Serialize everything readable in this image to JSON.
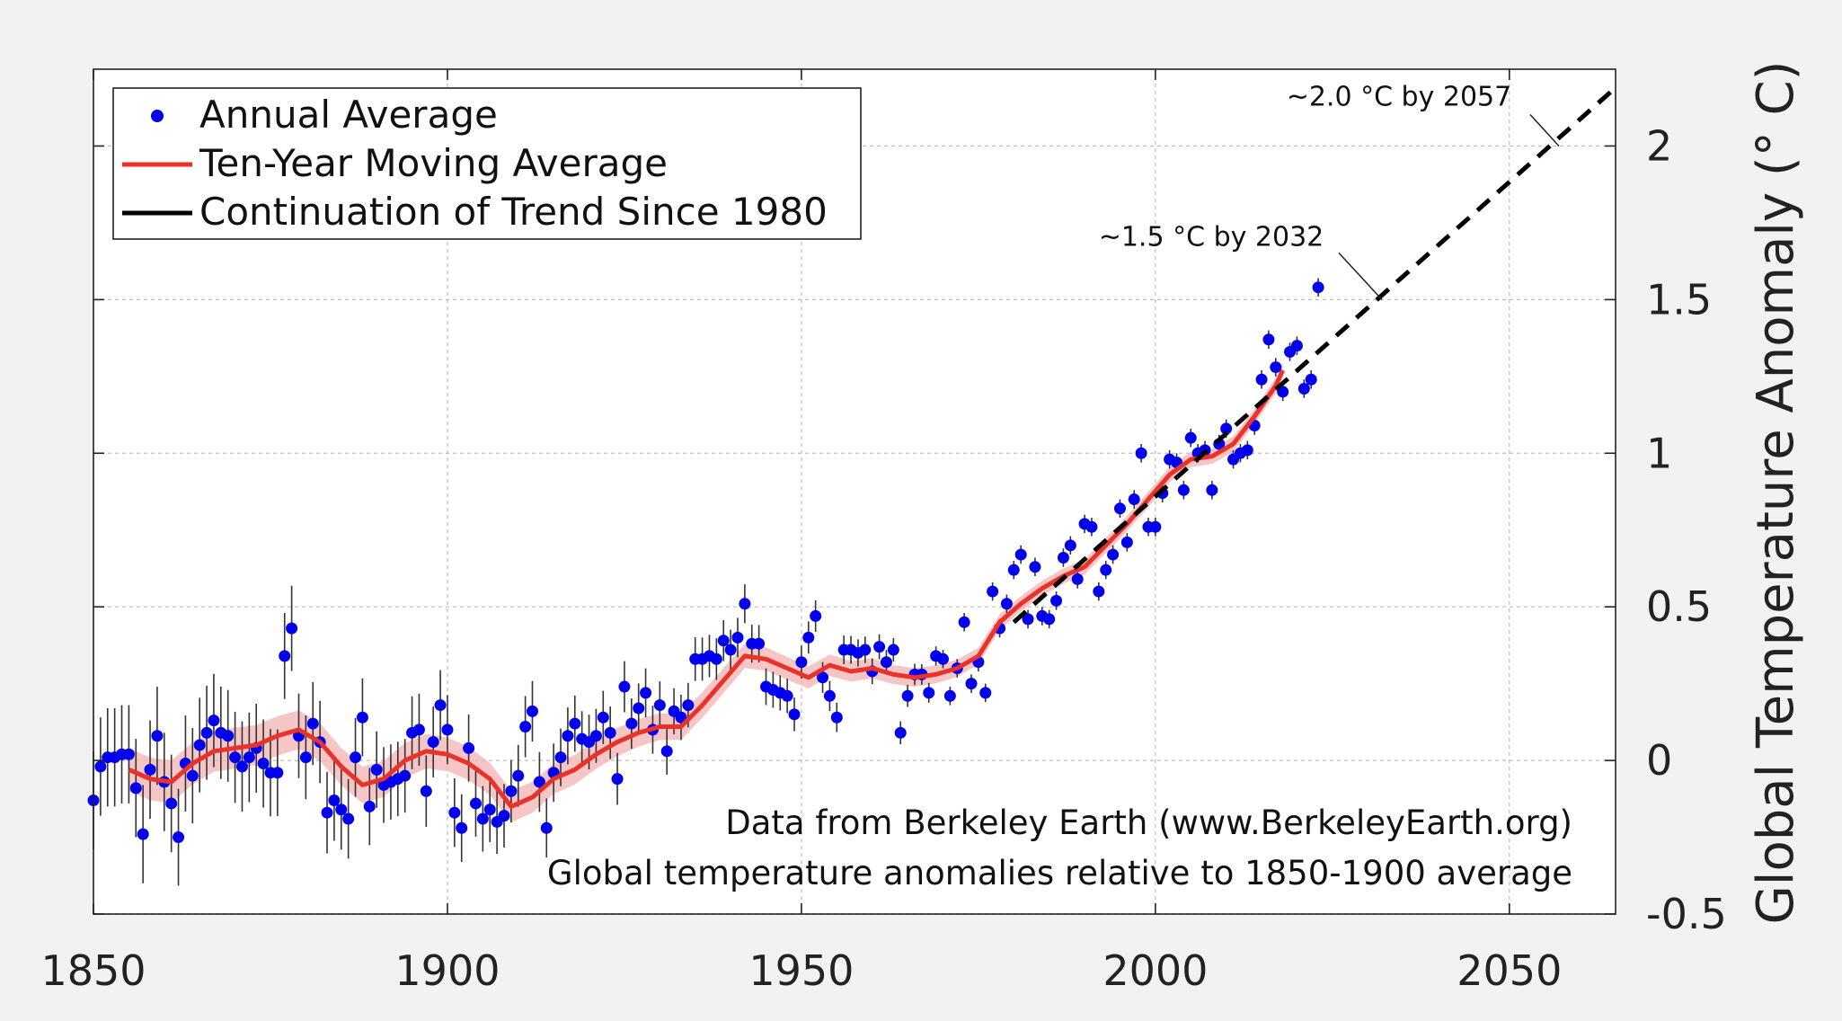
{
  "chart_data": {
    "type": "scatter",
    "title": "",
    "xlabel": "",
    "ylabel": "Global Temperature Anomaly (° C)",
    "xlim": [
      1850,
      2065
    ],
    "ylim": [
      -0.5,
      2.25
    ],
    "x_ticks": [
      1850,
      1900,
      1950,
      2000,
      2050
    ],
    "x_tick_labels": [
      "1850",
      "1900",
      "1950",
      "2000",
      "2050"
    ],
    "y_ticks": [
      -0.5,
      0,
      0.5,
      1,
      1.5,
      2
    ],
    "y_tick_labels": [
      "-0.5",
      "0",
      "0.5",
      "1",
      "1.5",
      "2"
    ],
    "y_axis_side": "right",
    "grid": true,
    "legend_position": "top-left",
    "legend": [
      {
        "label": "Annual Average",
        "color": "#0000ee",
        "marker": "dot"
      },
      {
        "label": "Ten-Year Moving Average",
        "color": "#e8322a",
        "marker": "line"
      },
      {
        "label": "Continuation of Trend Since 1980",
        "color": "#000000",
        "marker": "line"
      }
    ],
    "annotations": [
      {
        "text": "~1.5 °C by 2032",
        "x": 2032,
        "y": 1.5
      },
      {
        "text": "~2.0 °C by 2057",
        "x": 2057,
        "y": 2.0
      }
    ],
    "source_notes": [
      "Data from Berkeley Earth (www.BerkeleyEarth.org)",
      "Global temperature anomalies relative to 1850-1900 average"
    ],
    "series": [
      {
        "name": "Annual Average",
        "color": "#0000ee",
        "x": [
          1850,
          1851,
          1852,
          1853,
          1854,
          1855,
          1856,
          1857,
          1858,
          1859,
          1860,
          1861,
          1862,
          1863,
          1864,
          1865,
          1866,
          1867,
          1868,
          1869,
          1870,
          1871,
          1872,
          1873,
          1874,
          1875,
          1876,
          1877,
          1878,
          1879,
          1880,
          1881,
          1882,
          1883,
          1884,
          1885,
          1886,
          1887,
          1888,
          1889,
          1890,
          1891,
          1892,
          1893,
          1894,
          1895,
          1896,
          1897,
          1898,
          1899,
          1900,
          1901,
          1902,
          1903,
          1904,
          1905,
          1906,
          1907,
          1908,
          1909,
          1910,
          1911,
          1912,
          1913,
          1914,
          1915,
          1916,
          1917,
          1918,
          1919,
          1920,
          1921,
          1922,
          1923,
          1924,
          1925,
          1926,
          1927,
          1928,
          1929,
          1930,
          1931,
          1932,
          1933,
          1934,
          1935,
          1936,
          1937,
          1938,
          1939,
          1940,
          1941,
          1942,
          1943,
          1944,
          1945,
          1946,
          1947,
          1948,
          1949,
          1950,
          1951,
          1952,
          1953,
          1954,
          1955,
          1956,
          1957,
          1958,
          1959,
          1960,
          1961,
          1962,
          1963,
          1964,
          1965,
          1966,
          1967,
          1968,
          1969,
          1970,
          1971,
          1972,
          1973,
          1974,
          1975,
          1976,
          1977,
          1978,
          1979,
          1980,
          1981,
          1982,
          1983,
          1984,
          1985,
          1986,
          1987,
          1988,
          1989,
          1990,
          1991,
          1992,
          1993,
          1994,
          1995,
          1996,
          1997,
          1998,
          1999,
          2000,
          2001,
          2002,
          2003,
          2004,
          2005,
          2006,
          2007,
          2008,
          2009,
          2010,
          2011,
          2012,
          2013,
          2014,
          2015,
          2016,
          2017,
          2018,
          2019,
          2020,
          2021,
          2022,
          2023
        ],
        "values": [
          -0.13,
          -0.02,
          0.01,
          0.01,
          0.02,
          0.02,
          -0.09,
          -0.24,
          -0.03,
          0.08,
          -0.07,
          -0.14,
          -0.25,
          -0.01,
          -0.05,
          0.05,
          0.09,
          0.13,
          0.09,
          0.08,
          0.01,
          -0.02,
          0.01,
          0.04,
          -0.01,
          -0.04,
          -0.04,
          0.34,
          0.43,
          0.08,
          0.01,
          0.12,
          0.06,
          -0.17,
          -0.13,
          -0.16,
          -0.19,
          0.01,
          0.14,
          -0.15,
          -0.03,
          -0.08,
          -0.07,
          -0.06,
          -0.05,
          0.09,
          0.1,
          -0.1,
          0.06,
          0.18,
          0.1,
          -0.17,
          -0.22,
          0.04,
          -0.14,
          -0.19,
          -0.16,
          -0.2,
          -0.18,
          -0.1,
          -0.05,
          0.11,
          0.16,
          -0.07,
          -0.22,
          -0.04,
          0.01,
          0.08,
          0.12,
          0.07,
          0.06,
          0.08,
          0.14,
          0.09,
          -0.06,
          0.24,
          0.12,
          0.17,
          0.22,
          0.1,
          0.18,
          0.03,
          0.16,
          0.14,
          0.18,
          0.33,
          0.33,
          0.34,
          0.33,
          0.39,
          0.36,
          0.4,
          0.51,
          0.38,
          0.38,
          0.24,
          0.23,
          0.22,
          0.21,
          0.15,
          0.32,
          0.4,
          0.47,
          0.27,
          0.21,
          0.14,
          0.36,
          0.36,
          0.35,
          0.36,
          0.29,
          0.37,
          0.32,
          0.36,
          0.09,
          0.21,
          0.28,
          0.28,
          0.22,
          0.34,
          0.33,
          0.21,
          0.3,
          0.45,
          0.25,
          0.32,
          0.22,
          0.55,
          0.43,
          0.51,
          0.62,
          0.67,
          0.46,
          0.63,
          0.47,
          0.46,
          0.52,
          0.66,
          0.7,
          0.59,
          0.77,
          0.76,
          0.55,
          0.62,
          0.67,
          0.82,
          0.71,
          0.85,
          1.0,
          0.76,
          0.76,
          0.87,
          0.98,
          0.97,
          0.88,
          1.05,
          1.0,
          1.01,
          0.88,
          1.03,
          1.08,
          0.98,
          1.0,
          1.01,
          1.09,
          1.24,
          1.37,
          1.28,
          1.2,
          1.33,
          1.35,
          1.21,
          1.24,
          1.54
        ]
      },
      {
        "name": "Ten-Year Moving Average",
        "color": "#e8322a",
        "x": [
          1855,
          1858,
          1861,
          1864,
          1867,
          1870,
          1873,
          1876,
          1879,
          1882,
          1885,
          1888,
          1891,
          1894,
          1897,
          1900,
          1903,
          1906,
          1909,
          1912,
          1915,
          1918,
          1921,
          1924,
          1927,
          1930,
          1933,
          1936,
          1939,
          1942,
          1945,
          1948,
          1951,
          1954,
          1957,
          1960,
          1963,
          1966,
          1969,
          1972,
          1975,
          1978,
          1981,
          1984,
          1987,
          1990,
          1993,
          1996,
          1999,
          2002,
          2005,
          2008,
          2011,
          2014,
          2017,
          2018
        ],
        "values": [
          -0.03,
          -0.06,
          -0.07,
          -0.01,
          0.03,
          0.04,
          0.05,
          0.08,
          0.1,
          0.06,
          -0.02,
          -0.08,
          -0.06,
          0.0,
          0.03,
          0.02,
          -0.01,
          -0.06,
          -0.15,
          -0.12,
          -0.06,
          -0.03,
          0.02,
          0.06,
          0.09,
          0.11,
          0.11,
          0.18,
          0.26,
          0.34,
          0.33,
          0.3,
          0.27,
          0.31,
          0.29,
          0.3,
          0.28,
          0.27,
          0.28,
          0.3,
          0.34,
          0.45,
          0.51,
          0.56,
          0.6,
          0.63,
          0.7,
          0.77,
          0.85,
          0.93,
          0.98,
          0.99,
          1.03,
          1.12,
          1.22,
          1.27
        ]
      },
      {
        "name": "Continuation of Trend Since 1980",
        "color": "#000000",
        "x": [
          1980,
          2065
        ],
        "values": [
          0.45,
          2.19
        ]
      }
    ]
  }
}
